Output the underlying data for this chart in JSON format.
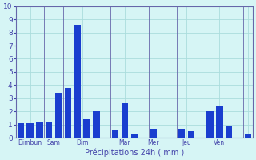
{
  "bars": [
    {
      "x": 0,
      "height": 1.1
    },
    {
      "x": 1,
      "height": 1.1
    },
    {
      "x": 2,
      "height": 1.2
    },
    {
      "x": 3,
      "height": 1.2
    },
    {
      "x": 4,
      "height": 3.4
    },
    {
      "x": 5,
      "height": 3.75
    },
    {
      "x": 6,
      "height": 8.6
    },
    {
      "x": 7,
      "height": 1.4
    },
    {
      "x": 8,
      "height": 2.0
    },
    {
      "x": 9,
      "height": 0.0
    },
    {
      "x": 10,
      "height": 0.6
    },
    {
      "x": 11,
      "height": 2.6
    },
    {
      "x": 12,
      "height": 0.3
    },
    {
      "x": 13,
      "height": 0.0
    },
    {
      "x": 14,
      "height": 0.7
    },
    {
      "x": 15,
      "height": 0.0
    },
    {
      "x": 16,
      "height": 0.0
    },
    {
      "x": 17,
      "height": 0.7
    },
    {
      "x": 18,
      "height": 0.5
    },
    {
      "x": 19,
      "height": 0.0
    },
    {
      "x": 20,
      "height": 2.0
    },
    {
      "x": 21,
      "height": 2.4
    },
    {
      "x": 22,
      "height": 0.9
    },
    {
      "x": 23,
      "height": 0.0
    },
    {
      "x": 24,
      "height": 0.3
    }
  ],
  "day_dividers": [
    2.5,
    4.5,
    9.5,
    13.5,
    16.5,
    19.5,
    23.5
  ],
  "day_tick_positions": [
    1.0,
    3.5,
    6.5,
    11.5,
    14.0,
    17.5,
    21.0,
    24.0
  ],
  "day_tick_labels": [
    "Dimun",
    "Sam",
    "Dim",
    "Mar",
    "Mer",
    "Jeu",
    "Ven",
    ""
  ],
  "bar_color": "#1a3ecf",
  "background_color": "#d6f5f5",
  "grid_color": "#aadddd",
  "axis_color": "#6666aa",
  "text_color": "#4444aa",
  "xlabel": "Précipitations 24h ( mm )",
  "ylim": [
    0,
    10
  ],
  "yticks": [
    0,
    1,
    2,
    3,
    4,
    5,
    6,
    7,
    8,
    9,
    10
  ],
  "xlim": [
    -0.5,
    24.5
  ]
}
